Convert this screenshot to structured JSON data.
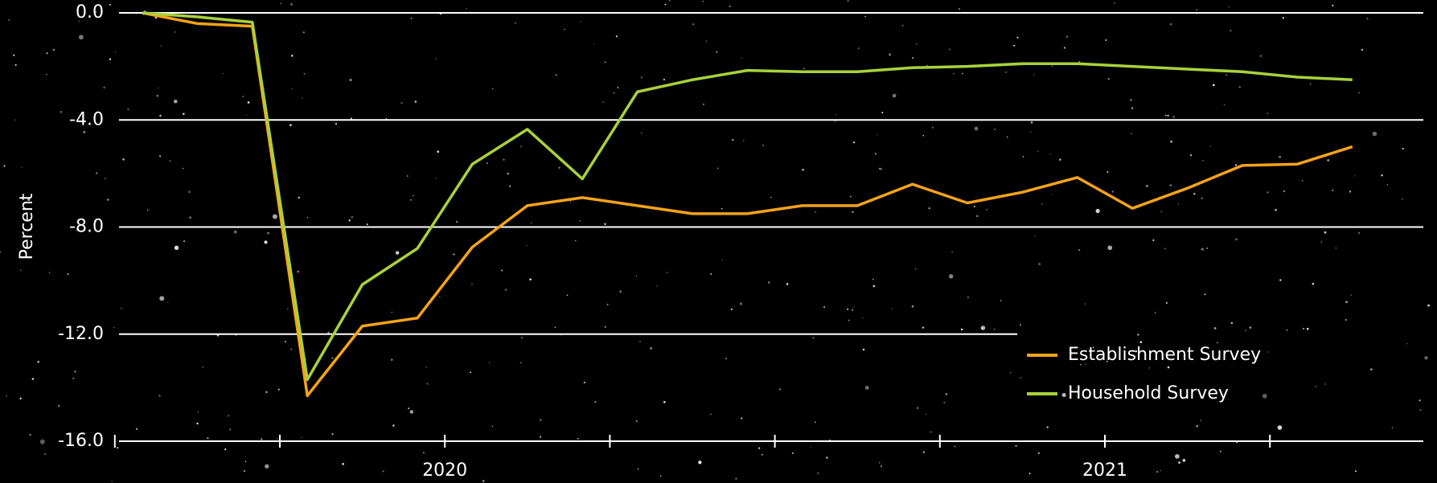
{
  "chart_data": {
    "type": "line",
    "y_label": "Percent",
    "year_labels": [
      "2020",
      "2021"
    ],
    "categories": [
      null,
      null,
      null,
      null,
      null,
      null,
      null,
      null,
      null,
      null,
      null,
      null,
      null,
      null,
      null,
      null,
      null,
      null,
      null,
      null,
      null,
      null,
      null
    ],
    "series": [
      {
        "name": "Establishment Survey",
        "color": "#f5a31a",
        "values": [
          0.0,
          -0.4,
          -0.5,
          -14.3,
          -11.7,
          -11.4,
          -8.75,
          -7.2,
          -6.9,
          -7.2,
          -7.5,
          -7.5,
          -7.2,
          -7.2,
          -6.4,
          -7.1,
          -6.7,
          -6.15,
          -7.3,
          -6.55,
          -5.7,
          -5.65,
          -5.0
        ]
      },
      {
        "name": "Household Survey",
        "color": "#a9d13b",
        "values": [
          0.0,
          -0.15,
          -0.35,
          -13.7,
          -10.15,
          -8.8,
          -5.65,
          -4.35,
          -6.2,
          -2.95,
          -2.5,
          -2.15,
          -2.2,
          -2.2,
          -2.05,
          -2.0,
          -1.9,
          -1.9,
          -2.0,
          -2.1,
          -2.2,
          -2.4,
          -2.5
        ]
      }
    ],
    "ylim": [
      -16,
      0
    ],
    "yticks": [
      {
        "value": 0,
        "label": "0.0"
      },
      {
        "value": -4,
        "label": "-4.0"
      },
      {
        "value": -8,
        "label": "-8.0"
      },
      {
        "value": -12,
        "label": "-12.0"
      },
      {
        "value": -16,
        "label": "-16.0"
      }
    ],
    "grid": true
  }
}
